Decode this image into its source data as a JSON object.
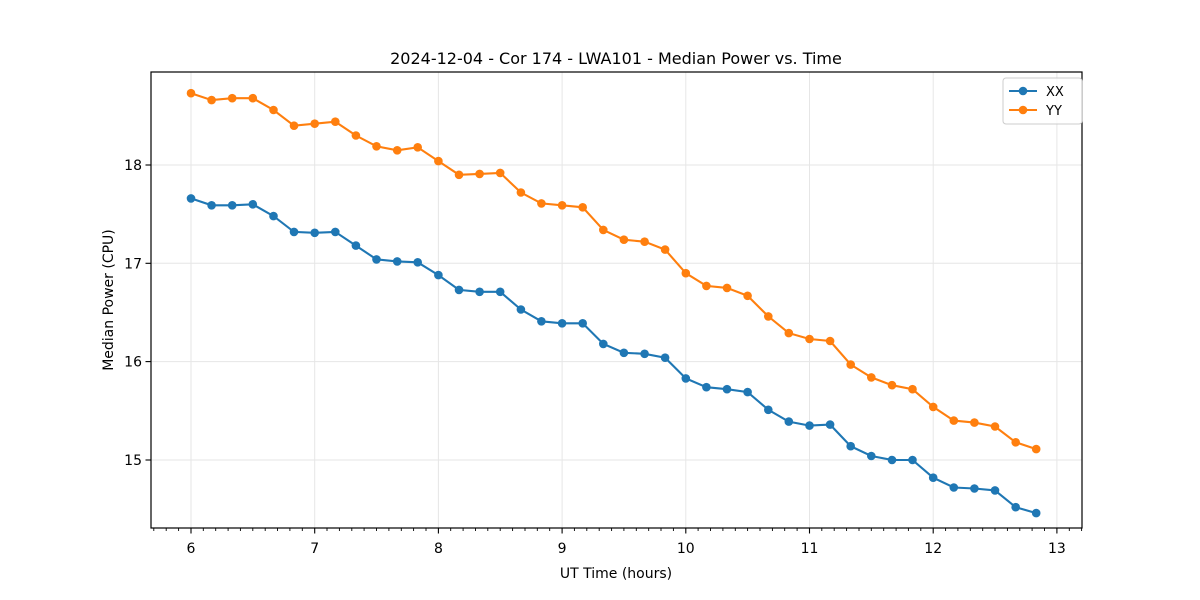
{
  "chart_data": {
    "type": "line",
    "title": "2024-12-04 - Cor 174 - LWA101 - Median Power vs. Time",
    "xlabel": "UT Time (hours)",
    "ylabel": "Median Power (CPU)",
    "xlim": [
      5.677,
      13.203
    ],
    "ylim": [
      14.308,
      18.946
    ],
    "xticks": [
      6,
      7,
      8,
      9,
      10,
      11,
      12,
      13
    ],
    "yticks": [
      15,
      16,
      17,
      18
    ],
    "x_minor_tick_step": 0.1,
    "grid": true,
    "grid_color": "#e6e6e6",
    "legend_position": "upper right",
    "x": [
      6.0,
      6.167,
      6.333,
      6.5,
      6.667,
      6.833,
      7.0,
      7.167,
      7.333,
      7.5,
      7.667,
      7.833,
      8.0,
      8.167,
      8.333,
      8.5,
      8.667,
      8.833,
      9.0,
      9.167,
      9.333,
      9.5,
      9.667,
      9.833,
      10.0,
      10.167,
      10.333,
      10.5,
      10.667,
      10.833,
      11.0,
      11.167,
      11.333,
      11.5,
      11.667,
      11.833,
      12.0,
      12.167,
      12.333,
      12.5,
      12.667,
      12.833
    ],
    "series": [
      {
        "name": "XX",
        "color": "#1f77b4",
        "values": [
          17.66,
          17.59,
          17.59,
          17.6,
          17.48,
          17.32,
          17.31,
          17.32,
          17.18,
          17.04,
          17.02,
          17.01,
          16.88,
          16.73,
          16.71,
          16.71,
          16.53,
          16.41,
          16.39,
          16.39,
          16.18,
          16.09,
          16.08,
          16.04,
          15.83,
          15.74,
          15.72,
          15.69,
          15.51,
          15.39,
          15.35,
          15.36,
          15.14,
          15.04,
          15.0,
          15.0,
          14.82,
          14.72,
          14.71,
          14.69,
          14.52,
          14.46
        ]
      },
      {
        "name": "YY",
        "color": "#ff7f0e",
        "values": [
          18.73,
          18.66,
          18.68,
          18.68,
          18.56,
          18.4,
          18.42,
          18.44,
          18.3,
          18.19,
          18.15,
          18.18,
          18.04,
          17.9,
          17.91,
          17.92,
          17.72,
          17.61,
          17.59,
          17.57,
          17.34,
          17.24,
          17.22,
          17.14,
          16.9,
          16.77,
          16.75,
          16.67,
          16.46,
          16.29,
          16.23,
          16.21,
          15.97,
          15.84,
          15.76,
          15.72,
          15.54,
          15.4,
          15.38,
          15.34,
          15.18,
          15.11
        ]
      }
    ]
  }
}
